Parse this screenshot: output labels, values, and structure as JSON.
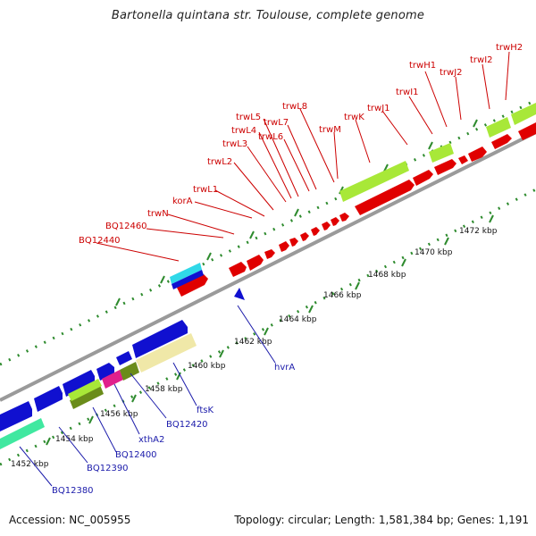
{
  "title": "Bartonella quintana str. Toulouse, complete genome",
  "footer": {
    "accession": "Accession: NC_005955",
    "summary": "Topology: circular; Length: 1,581,384 bp; Genes: 1,191"
  },
  "colors": {
    "forward_gene": "#e00000",
    "reverse_gene": "#1010d0",
    "feature_lime": "#a8e838",
    "feature_cyan": "#30d8e8",
    "feature_mint": "#40e8a0",
    "feature_olive": "#6a8c1a",
    "feature_magenta": "#e0208c",
    "feature_tan": "#f0e8a8",
    "backbone": "#9a9a9a",
    "ticks": "#2e8b2e"
  },
  "scale_labels": [
    "1452 kbp",
    "1454 kbp",
    "1456 kbp",
    "1458 kbp",
    "1460 kbp",
    "1462 kbp",
    "1464 kbp",
    "1466 kbp",
    "1468 kbp",
    "1470 kbp",
    "1472 kbp"
  ],
  "forward_labels": [
    "BQ12440",
    "BQ12460",
    "trwN",
    "korA",
    "trwL1",
    "trwL2",
    "trwL3",
    "trwL4",
    "trwL5",
    "trwL6",
    "trwL7",
    "trwL8",
    "trwM",
    "trwK",
    "trwJ1",
    "trwI1",
    "trwH1",
    "trwJ2",
    "trwI2",
    "trwH2"
  ],
  "reverse_labels": [
    "BQ12380",
    "BQ12390",
    "BQ12400",
    "xthA2",
    "BQ12420",
    "ftsK",
    "hvrA"
  ]
}
